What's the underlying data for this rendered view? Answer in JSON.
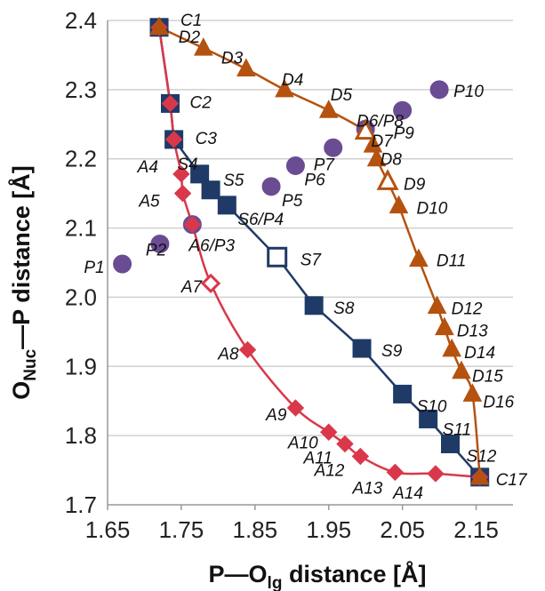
{
  "chart_data": {
    "type": "scatter",
    "xlabel": {
      "main": "P—O",
      "sub": "lg",
      "rest": " distance [Å]"
    },
    "ylabel": {
      "pre": "O",
      "sub": "Nuc",
      "rest": "—P distance [Å]"
    },
    "xlim": [
      1.65,
      2.2
    ],
    "ylim": [
      1.7,
      2.4
    ],
    "xticks": [
      "1.65",
      "1.75",
      "1.85",
      "1.95",
      "2.05",
      "2.15"
    ],
    "yticks": [
      "1.7",
      "1.8",
      "1.9",
      "2.0",
      "2.1",
      "2.2",
      "2.3",
      "2.4"
    ],
    "grid": "horizontal",
    "colors": {
      "S": "#1f3a66",
      "A": "#d9384a",
      "D": "#b5520f",
      "P": "#6a4c93",
      "C": "#1f3a66"
    },
    "series": [
      {
        "key": "S",
        "marker": "square",
        "line": true,
        "points": [
          {
            "label": "C1",
            "x": 1.72,
            "y": 2.39
          },
          {
            "label": "C2",
            "x": 1.735,
            "y": 2.28
          },
          {
            "label": "C3",
            "x": 1.74,
            "y": 2.228
          },
          {
            "label": "S4",
            "x": 1.775,
            "y": 2.178
          },
          {
            "label": "S5",
            "x": 1.79,
            "y": 2.155
          },
          {
            "label": "S6/P4",
            "x": 1.812,
            "y": 2.133
          },
          {
            "label": "S7",
            "x": 1.88,
            "y": 2.058,
            "hollow": true
          },
          {
            "label": "S8",
            "x": 1.93,
            "y": 1.988
          },
          {
            "label": "S9",
            "x": 1.995,
            "y": 1.926
          },
          {
            "label": "S10",
            "x": 2.05,
            "y": 1.86
          },
          {
            "label": "S11",
            "x": 2.085,
            "y": 1.824
          },
          {
            "label": "S12",
            "x": 2.115,
            "y": 1.788
          },
          {
            "label": "C17",
            "x": 2.155,
            "y": 1.74
          }
        ]
      },
      {
        "key": "A",
        "marker": "diamond",
        "line": true,
        "points": [
          {
            "label": "",
            "x": 1.72,
            "y": 2.39
          },
          {
            "x": 1.735,
            "y": 2.28
          },
          {
            "x": 1.74,
            "y": 2.228
          },
          {
            "label": "A4",
            "x": 1.75,
            "y": 2.178
          },
          {
            "label": "A5",
            "x": 1.752,
            "y": 2.15
          },
          {
            "label": "A6/P3",
            "x": 1.765,
            "y": 2.105
          },
          {
            "label": "A7",
            "x": 1.79,
            "y": 2.02,
            "hollow": true
          },
          {
            "label": "A8",
            "x": 1.84,
            "y": 1.924
          },
          {
            "label": "A9",
            "x": 1.905,
            "y": 1.84
          },
          {
            "label": "A10",
            "x": 1.95,
            "y": 1.805
          },
          {
            "label": "A11",
            "x": 1.972,
            "y": 1.788
          },
          {
            "label": "A12",
            "x": 1.993,
            "y": 1.77
          },
          {
            "label": "A13",
            "x": 2.04,
            "y": 1.747
          },
          {
            "label": "A14",
            "x": 2.095,
            "y": 1.745
          },
          {
            "x": 2.155,
            "y": 1.74
          }
        ]
      },
      {
        "key": "D",
        "marker": "triangle",
        "line": true,
        "points": [
          {
            "x": 1.72,
            "y": 2.39
          },
          {
            "label": "D2",
            "x": 1.78,
            "y": 2.36
          },
          {
            "label": "D3",
            "x": 1.838,
            "y": 2.33
          },
          {
            "label": "D4",
            "x": 1.89,
            "y": 2.3
          },
          {
            "label": "D5",
            "x": 1.95,
            "y": 2.27
          },
          {
            "label": "D6/P8",
            "x": 2.0,
            "y": 2.24,
            "hollow": true
          },
          {
            "label": "D7",
            "x": 2.01,
            "y": 2.22
          },
          {
            "label": "D8",
            "x": 2.015,
            "y": 2.2
          },
          {
            "label": "D9",
            "x": 2.03,
            "y": 2.167,
            "hollow": true
          },
          {
            "label": "D10",
            "x": 2.045,
            "y": 2.132
          },
          {
            "label": "D11",
            "x": 2.072,
            "y": 2.055
          },
          {
            "label": "D12",
            "x": 2.097,
            "y": 1.987
          },
          {
            "label": "D13",
            "x": 2.107,
            "y": 1.956
          },
          {
            "label": "D14",
            "x": 2.117,
            "y": 1.925
          },
          {
            "label": "D15",
            "x": 2.13,
            "y": 1.893
          },
          {
            "label": "D16",
            "x": 2.145,
            "y": 1.86
          },
          {
            "x": 2.155,
            "y": 1.74
          }
        ]
      },
      {
        "key": "P",
        "marker": "circle",
        "line": false,
        "points": [
          {
            "label": "P1",
            "x": 1.67,
            "y": 2.048
          },
          {
            "label": "P2",
            "x": 1.721,
            "y": 2.077
          },
          {
            "x": 1.765,
            "y": 2.105
          },
          {
            "label": "P5",
            "x": 1.872,
            "y": 2.16
          },
          {
            "label": "P6",
            "x": 1.905,
            "y": 2.19
          },
          {
            "label": "P7",
            "x": 1.956,
            "y": 2.216
          },
          {
            "x": 2.0,
            "y": 2.243
          },
          {
            "label": "P9",
            "x": 2.05,
            "y": 2.27
          },
          {
            "label": "P10",
            "x": 2.1,
            "y": 2.3
          }
        ]
      }
    ]
  }
}
